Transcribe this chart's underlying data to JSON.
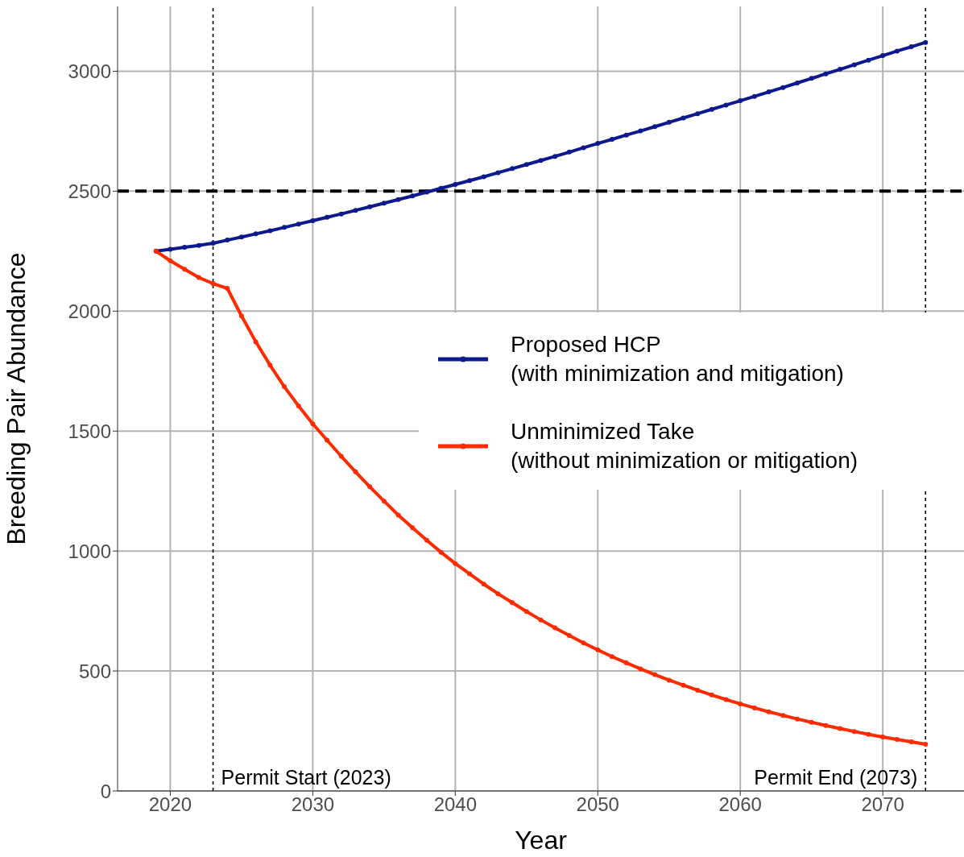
{
  "chart_data": {
    "type": "line",
    "xlabel": "Year",
    "ylabel": "Breeding Pair Abundance",
    "x": [
      2019,
      2020,
      2021,
      2022,
      2023,
      2024,
      2025,
      2026,
      2027,
      2028,
      2029,
      2030,
      2031,
      2032,
      2033,
      2034,
      2035,
      2036,
      2037,
      2038,
      2039,
      2040,
      2041,
      2042,
      2043,
      2044,
      2045,
      2046,
      2047,
      2048,
      2049,
      2050,
      2051,
      2052,
      2053,
      2054,
      2055,
      2056,
      2057,
      2058,
      2059,
      2060,
      2061,
      2062,
      2063,
      2064,
      2065,
      2066,
      2067,
      2068,
      2069,
      2070,
      2071,
      2072,
      2073
    ],
    "series": [
      {
        "name": "Proposed HCP\n(with minimization and mitigation)",
        "color": "#0c1a8e",
        "values": [
          2250,
          2258,
          2266,
          2274,
          2283,
          2296,
          2309,
          2322,
          2335,
          2349,
          2363,
          2377,
          2391,
          2405,
          2420,
          2435,
          2450,
          2465,
          2480,
          2496,
          2512,
          2528,
          2544,
          2560,
          2577,
          2594,
          2611,
          2628,
          2645,
          2663,
          2681,
          2699,
          2716,
          2734,
          2751,
          2769,
          2787,
          2805,
          2823,
          2841,
          2859,
          2877,
          2895,
          2914,
          2932,
          2951,
          2970,
          2989,
          3008,
          3027,
          3046,
          3065,
          3084,
          3102,
          3120
        ]
      },
      {
        "name": "Unminimized Take\n(without minimization or mitigation)",
        "color": "#ff2a00",
        "values": [
          2250,
          2210,
          2175,
          2140,
          2115,
          2095,
          1980,
          1872,
          1775,
          1685,
          1605,
          1530,
          1462,
          1395,
          1330,
          1268,
          1208,
          1150,
          1097,
          1045,
          995,
          948,
          905,
          862,
          822,
          785,
          748,
          713,
          680,
          648,
          617,
          588,
          560,
          534,
          509,
          485,
          462,
          441,
          420,
          400,
          381,
          363,
          346,
          330,
          315,
          300,
          286,
          273,
          260,
          248,
          236,
          225,
          215,
          205,
          195
        ]
      }
    ],
    "xlim": [
      2016.3,
      2075.7
    ],
    "xticks": [
      2020,
      2030,
      2040,
      2050,
      2060,
      2070
    ],
    "ylim": [
      0,
      3270
    ],
    "yticks": [
      0,
      500,
      1000,
      1500,
      2000,
      2500,
      3000
    ],
    "ref_lines": [
      {
        "axis": "y",
        "value": 2500,
        "label": null,
        "color": "#000000",
        "line_style": "dashed"
      },
      {
        "axis": "x",
        "value": 2023,
        "label": "Permit Start (2023)",
        "color": "#000000",
        "line_style": "dotted"
      },
      {
        "axis": "x",
        "value": 2073,
        "label": "Permit End (2073)",
        "color": "#000000",
        "line_style": "dotted"
      }
    ],
    "grid": true,
    "legend": "right",
    "marker": "circle",
    "line_style": "solid"
  }
}
